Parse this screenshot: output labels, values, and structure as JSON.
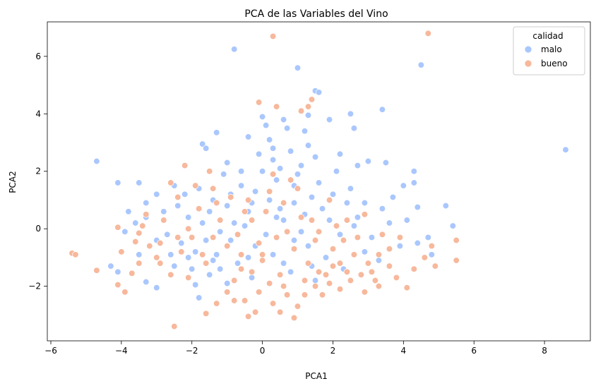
{
  "chart_data": {
    "type": "scatter",
    "title": "PCA de las Variables del Vino",
    "xlabel": "PCA1",
    "ylabel": "PCA2",
    "xlim": [
      -6.1,
      9.3
    ],
    "ylim": [
      -3.9,
      7.2
    ],
    "xticks": [
      -6,
      -4,
      -2,
      0,
      2,
      4,
      6,
      8
    ],
    "yticks": [
      -2,
      0,
      2,
      4,
      6
    ],
    "grid": false,
    "legend": {
      "title": "calidad",
      "position": "top-right"
    },
    "series": [
      {
        "name": "malo",
        "color": "#aac7fd",
        "points": [
          [
            -4.7,
            2.35
          ],
          [
            -4.1,
            1.6
          ],
          [
            -0.8,
            6.25
          ],
          [
            1.0,
            5.6
          ],
          [
            4.5,
            5.7
          ],
          [
            8.6,
            2.75
          ],
          [
            1.5,
            4.8
          ],
          [
            1.6,
            4.75
          ],
          [
            1.3,
            3.95
          ],
          [
            1.9,
            3.8
          ],
          [
            3.4,
            4.15
          ],
          [
            2.5,
            4.0
          ],
          [
            0.6,
            3.8
          ],
          [
            0.0,
            3.9
          ],
          [
            0.1,
            3.6
          ],
          [
            2.6,
            3.5
          ],
          [
            1.2,
            3.4
          ],
          [
            -1.3,
            3.35
          ],
          [
            0.7,
            3.5
          ],
          [
            0.2,
            3.1
          ],
          [
            -0.4,
            3.2
          ],
          [
            -1.7,
            2.95
          ],
          [
            -1.6,
            2.8
          ],
          [
            2.7,
            2.2
          ],
          [
            3.0,
            2.35
          ],
          [
            3.5,
            2.3
          ],
          [
            4.3,
            2.0
          ],
          [
            4.0,
            1.5
          ],
          [
            4.3,
            1.6
          ],
          [
            5.2,
            0.8
          ],
          [
            5.4,
            0.1
          ],
          [
            4.8,
            -0.9
          ],
          [
            4.4,
            0.75
          ],
          [
            4.7,
            -0.3
          ],
          [
            -3.5,
            1.6
          ],
          [
            -3.0,
            1.2
          ],
          [
            -2.5,
            1.5
          ],
          [
            -3.3,
            0.9
          ],
          [
            -2.8,
            0.6
          ],
          [
            -1.8,
            -2.4
          ],
          [
            -1.2,
            -1.4
          ],
          [
            -1.9,
            -1.95
          ],
          [
            -3.0,
            -2.05
          ],
          [
            -3.3,
            -1.85
          ],
          [
            -4.3,
            -1.3
          ],
          [
            -4.1,
            -1.5
          ],
          [
            -3.8,
            0.6
          ],
          [
            -3.5,
            -0.9
          ],
          [
            -3.3,
            0.4
          ],
          [
            -1.0,
            2.3
          ],
          [
            -0.6,
            2.0
          ],
          [
            0.3,
            2.4
          ],
          [
            0.8,
            2.7
          ],
          [
            1.1,
            2.2
          ],
          [
            1.5,
            2.5
          ],
          [
            -0.2,
            1.3
          ],
          [
            0.4,
            1.7
          ],
          [
            0.9,
            1.5
          ],
          [
            1.4,
            1.1
          ],
          [
            2.0,
            1.2
          ],
          [
            2.4,
            0.9
          ],
          [
            -1.4,
            1.0
          ],
          [
            -1.0,
            0.8
          ],
          [
            -0.4,
            0.6
          ],
          [
            0.2,
            1.0
          ],
          [
            0.6,
            0.3
          ],
          [
            1.2,
            0.5
          ],
          [
            -2.1,
            0.4
          ],
          [
            -1.7,
            0.2
          ],
          [
            -1.2,
            -0.1
          ],
          [
            -0.5,
            0.1
          ],
          [
            0.1,
            -0.2
          ],
          [
            0.9,
            -0.4
          ],
          [
            -2.3,
            -0.5
          ],
          [
            -1.9,
            -0.8
          ],
          [
            -1.3,
            -0.9
          ],
          [
            -0.7,
            -1.2
          ],
          [
            0.3,
            -0.9
          ],
          [
            1.3,
            -0.6
          ],
          [
            1.8,
            -1.0
          ],
          [
            2.2,
            -0.2
          ],
          [
            2.7,
            0.4
          ],
          [
            3.1,
            -0.3
          ],
          [
            3.4,
            0.7
          ],
          [
            -2.7,
            -0.2
          ],
          [
            -2.5,
            -1.3
          ],
          [
            -1.5,
            -1.6
          ],
          [
            -0.9,
            -0.4
          ],
          [
            -0.2,
            -0.6
          ],
          [
            0.5,
            0.7
          ],
          [
            1.0,
            1.9
          ],
          [
            1.6,
            1.6
          ],
          [
            2.1,
            2.0
          ],
          [
            2.5,
            1.4
          ],
          [
            3.7,
            1.1
          ],
          [
            -0.6,
            1.5
          ],
          [
            -1.8,
            1.4
          ],
          [
            -2.2,
            1.2
          ],
          [
            -1.1,
            1.9
          ],
          [
            0.0,
            2.0
          ],
          [
            0.5,
            2.1
          ],
          [
            3.3,
            -1.1
          ],
          [
            2.9,
            -0.8
          ],
          [
            3.9,
            -0.6
          ],
          [
            2.3,
            -1.4
          ],
          [
            1.5,
            -1.8
          ],
          [
            0.8,
            -1.5
          ],
          [
            -0.3,
            -1.7
          ],
          [
            -1.0,
            -1.9
          ],
          [
            -2.0,
            -1.4
          ],
          [
            -2.6,
            -0.9
          ],
          [
            -3.0,
            -0.4
          ],
          [
            4.4,
            -0.5
          ],
          [
            4.1,
            0.3
          ],
          [
            3.6,
            0.2
          ],
          [
            2.9,
            0.9
          ],
          [
            1.9,
            0.3
          ],
          [
            1.1,
            -0.1
          ],
          [
            -0.8,
            0.2
          ],
          [
            -1.6,
            -0.4
          ],
          [
            -2.4,
            0.8
          ],
          [
            -3.6,
            0.2
          ],
          [
            -3.9,
            -0.1
          ],
          [
            0.3,
            2.8
          ],
          [
            -0.1,
            2.6
          ],
          [
            1.3,
            2.9
          ],
          [
            2.2,
            2.6
          ],
          [
            1.7,
            0.7
          ],
          [
            2.6,
            0.1
          ],
          [
            -0.4,
            -1.0
          ],
          [
            0.6,
            -1.2
          ],
          [
            1.4,
            -1.3
          ],
          [
            -1.4,
            -1.1
          ],
          [
            -2.1,
            -1.0
          ],
          [
            0.9,
            0.9
          ],
          [
            0.4,
            0.4
          ],
          [
            -0.3,
            0.9
          ],
          [
            -0.9,
            1.2
          ],
          [
            -1.5,
            0.6
          ]
        ]
      },
      {
        "name": "bueno",
        "color": "#f7b89c",
        "points": [
          [
            -5.4,
            -0.85
          ],
          [
            -5.3,
            -0.9
          ],
          [
            -4.7,
            -1.45
          ],
          [
            -4.1,
            -1.95
          ],
          [
            -4.1,
            0.05
          ],
          [
            -3.9,
            -2.2
          ],
          [
            -3.7,
            -1.55
          ],
          [
            -3.6,
            -0.45
          ],
          [
            -3.5,
            -0.15
          ],
          [
            -3.4,
            0.1
          ],
          [
            -2.5,
            -3.4
          ],
          [
            -0.4,
            -3.05
          ],
          [
            0.9,
            -3.1
          ],
          [
            -1.6,
            -2.95
          ],
          [
            4.7,
            6.8
          ],
          [
            0.3,
            6.7
          ],
          [
            1.4,
            4.5
          ],
          [
            1.3,
            4.25
          ],
          [
            -0.1,
            4.4
          ],
          [
            0.4,
            4.25
          ],
          [
            1.1,
            4.1
          ],
          [
            5.5,
            -1.1
          ],
          [
            5.5,
            -0.4
          ],
          [
            4.8,
            -0.6
          ],
          [
            4.1,
            -2.05
          ],
          [
            3.6,
            -1.3
          ],
          [
            2.5,
            -1.8
          ],
          [
            2.2,
            -2.1
          ],
          [
            1.8,
            -1.6
          ],
          [
            1.5,
            -2.0
          ],
          [
            1.2,
            -1.8
          ],
          [
            3.0,
            -1.2
          ],
          [
            2.8,
            -1.6
          ],
          [
            3.3,
            -0.9
          ],
          [
            2.0,
            -1.3
          ],
          [
            1.7,
            -2.3
          ],
          [
            -0.5,
            -2.5
          ],
          [
            -0.1,
            -2.2
          ],
          [
            0.3,
            -2.6
          ],
          [
            0.7,
            -2.3
          ],
          [
            1.0,
            -2.7
          ],
          [
            -1.0,
            -2.2
          ],
          [
            -1.3,
            -2.6
          ],
          [
            -0.2,
            -2.9
          ],
          [
            0.5,
            -2.9
          ],
          [
            -0.8,
            -2.5
          ],
          [
            -2.9,
            -1.2
          ],
          [
            -2.6,
            -1.6
          ],
          [
            -2.3,
            -0.8
          ],
          [
            -2.0,
            -0.3
          ],
          [
            -1.7,
            -0.9
          ],
          [
            -3.2,
            -0.6
          ],
          [
            -2.8,
            0.3
          ],
          [
            -2.4,
            1.1
          ],
          [
            -1.9,
            1.5
          ],
          [
            -1.4,
            1.4
          ],
          [
            -0.9,
            1.1
          ],
          [
            -0.4,
            1.0
          ],
          [
            0.1,
            0.6
          ],
          [
            0.6,
            0.9
          ],
          [
            1.1,
            0.4
          ],
          [
            -1.2,
            0.3
          ],
          [
            -0.7,
            -0.2
          ],
          [
            -0.1,
            -0.5
          ],
          [
            0.4,
            -0.3
          ],
          [
            0.9,
            -0.7
          ],
          [
            1.5,
            -0.4
          ],
          [
            2.0,
            -0.7
          ],
          [
            2.6,
            -0.9
          ],
          [
            3.1,
            -1.5
          ],
          [
            3.6,
            -0.7
          ],
          [
            -2.2,
            2.2
          ],
          [
            -2.6,
            1.6
          ],
          [
            -1.5,
            2.0
          ],
          [
            0.3,
            1.9
          ],
          [
            1.0,
            1.4
          ],
          [
            1.9,
            1.0
          ],
          [
            2.4,
            0.3
          ],
          [
            2.9,
            0.5
          ],
          [
            3.4,
            -0.2
          ],
          [
            3.9,
            -0.3
          ],
          [
            -0.6,
            -1.4
          ],
          [
            0.0,
            -1.1
          ],
          [
            0.5,
            -1.6
          ],
          [
            1.3,
            -1.2
          ],
          [
            2.2,
            -1.2
          ],
          [
            -1.6,
            -1.2
          ],
          [
            -2.1,
            -1.7
          ],
          [
            -3.0,
            -1.0
          ],
          [
            -3.5,
            -1.2
          ],
          [
            -4.0,
            -0.8
          ],
          [
            -1.0,
            -0.6
          ],
          [
            -0.3,
            0.3
          ],
          [
            0.7,
            -0.1
          ],
          [
            1.6,
            -0.1
          ],
          [
            2.3,
            -0.4
          ],
          [
            4.3,
            -1.4
          ],
          [
            4.6,
            -1.0
          ],
          [
            4.9,
            -1.3
          ],
          [
            3.8,
            -1.7
          ],
          [
            3.3,
            -2.0
          ],
          [
            0.2,
            -1.9
          ],
          [
            -0.3,
            -1.5
          ],
          [
            -0.8,
            -1.8
          ],
          [
            1.2,
            -2.3
          ],
          [
            1.9,
            -1.9
          ],
          [
            -1.8,
            0.7
          ],
          [
            -1.3,
            0.9
          ],
          [
            -0.5,
            0.6
          ],
          [
            0.2,
            1.3
          ],
          [
            0.8,
            1.7
          ],
          [
            2.7,
            -0.3
          ],
          [
            2.1,
            0.1
          ],
          [
            1.4,
            0.3
          ],
          [
            0.0,
            -0.9
          ],
          [
            -0.6,
            -0.9
          ],
          [
            -2.4,
            -0.3
          ],
          [
            -2.9,
            -0.5
          ],
          [
            -3.3,
            0.5
          ],
          [
            -2.1,
            0.0
          ],
          [
            -1.4,
            -0.3
          ],
          [
            0.6,
            -2.0
          ],
          [
            1.6,
            -1.5
          ],
          [
            2.4,
            -1.5
          ],
          [
            2.9,
            -2.2
          ],
          [
            3.2,
            -1.8
          ]
        ]
      }
    ]
  }
}
